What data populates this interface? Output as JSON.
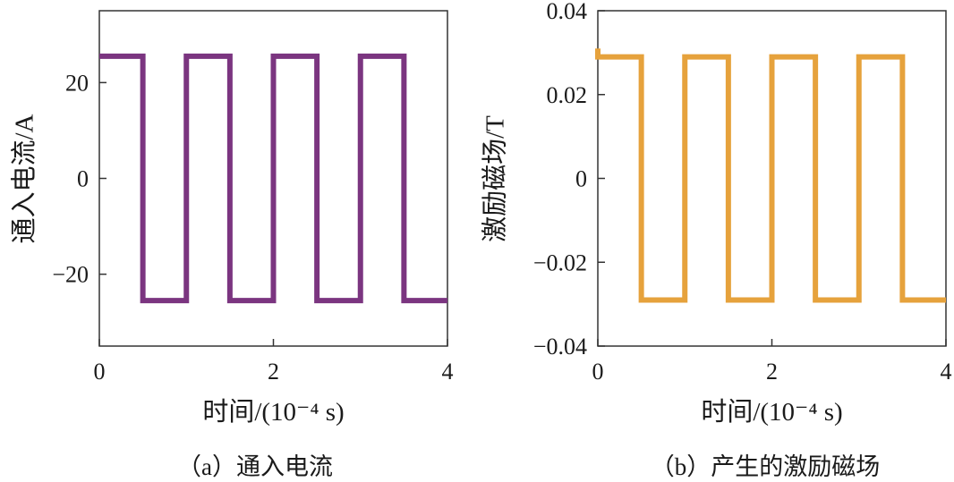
{
  "chart_data": [
    {
      "type": "line",
      "panel": "a",
      "caption": "（a）通入电流",
      "xlabel": "时间/(10⁻⁴ s)",
      "ylabel": "通入电流/A",
      "xlim": [
        0,
        4
      ],
      "ylim": [
        -35,
        35
      ],
      "xticks": [
        0,
        2,
        4
      ],
      "xtick_labels": [
        "0",
        "2",
        "4"
      ],
      "yticks": [
        20,
        0,
        -20
      ],
      "ytick_labels": [
        "20",
        "0",
        "−20"
      ],
      "grid": false,
      "color": "#7b3580",
      "series": [
        {
          "name": "current",
          "x": [
            0,
            0.5,
            0.5,
            1,
            1,
            1.5,
            1.5,
            2,
            2,
            2.5,
            2.5,
            3,
            3,
            3.5,
            3.5,
            4
          ],
          "y": [
            25.5,
            25.5,
            -25.5,
            -25.5,
            25.5,
            25.5,
            -25.5,
            -25.5,
            25.5,
            25.5,
            -25.5,
            -25.5,
            25.5,
            25.5,
            -25.5,
            -25.5
          ]
        }
      ]
    },
    {
      "type": "line",
      "panel": "b",
      "caption": "（b）产生的激励磁场",
      "xlabel": "时间/(10⁻⁴ s)",
      "ylabel": "激励磁场/T",
      "xlim": [
        0,
        4
      ],
      "ylim": [
        -0.04,
        0.04
      ],
      "xticks": [
        0,
        2,
        4
      ],
      "xtick_labels": [
        "0",
        "2",
        "4"
      ],
      "yticks": [
        0.04,
        0.02,
        0,
        -0.02,
        -0.04
      ],
      "ytick_labels": [
        "0.04",
        "0.02",
        "0",
        "−0.02",
        "−0.04"
      ],
      "grid": false,
      "color": "#e6a23c",
      "series": [
        {
          "name": "field",
          "x": [
            0,
            0,
            0.5,
            0.5,
            1,
            1,
            1.5,
            1.5,
            2,
            2,
            2.5,
            2.5,
            3,
            3,
            3.5,
            3.5,
            4
          ],
          "y": [
            0.031,
            0.029,
            0.029,
            -0.029,
            -0.029,
            0.029,
            0.029,
            -0.029,
            -0.029,
            0.029,
            0.029,
            -0.029,
            -0.029,
            0.029,
            0.029,
            -0.029,
            -0.029
          ]
        }
      ]
    }
  ]
}
